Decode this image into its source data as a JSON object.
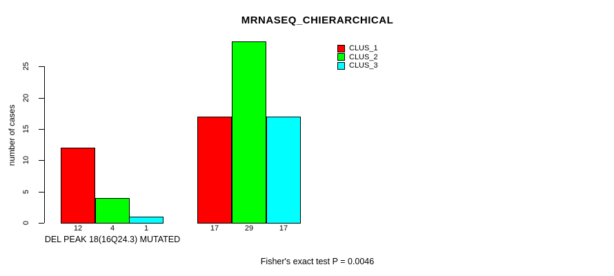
{
  "chart_data": {
    "type": "bar",
    "grouped": true,
    "title": "MRNASEQ_CHIERARCHICAL",
    "ylabel": "number of cases",
    "xlabel": "",
    "categories": [
      "DEL PEAK 18(16Q24.3) MUTATED",
      ""
    ],
    "series": [
      {
        "name": "CLUS_1",
        "color": "#ff0000",
        "values": [
          12,
          17
        ]
      },
      {
        "name": "CLUS_2",
        "color": "#00ff00",
        "values": [
          4,
          29
        ]
      },
      {
        "name": "CLUS_3",
        "color": "#00ffff",
        "values": [
          1,
          17
        ]
      }
    ],
    "bar_value_labels": [
      [
        12,
        4,
        1
      ],
      [
        17,
        29,
        17
      ]
    ],
    "yticks": [
      0,
      5,
      10,
      15,
      20,
      25
    ],
    "ylim": [
      0,
      29
    ],
    "grid": false,
    "legend": {
      "position": "top-right",
      "entries": [
        {
          "label": "CLUS_1",
          "color": "#ff0000"
        },
        {
          "label": "CLUS_2",
          "color": "#00ff00"
        },
        {
          "label": "CLUS_3",
          "color": "#00ffff"
        }
      ]
    },
    "annotation": "Fisher's exact test P = 0.0046"
  },
  "colors": {
    "background": "#ffffff",
    "axis": "#000000",
    "bar_border": "#000000",
    "text": "#000000"
  }
}
